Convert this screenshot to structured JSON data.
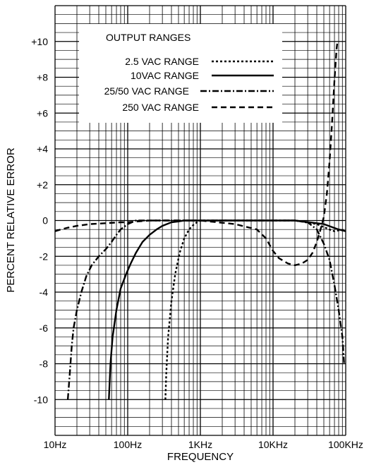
{
  "chart_data": {
    "type": "line",
    "xlabel": "FREQUENCY",
    "ylabel": "PERCENT RELATIVE ERROR",
    "x_scale": "log",
    "xlim": [
      10,
      100000
    ],
    "ylim": [
      -12,
      12
    ],
    "x_ticks": [
      {
        "value": 10,
        "label": "10Hz"
      },
      {
        "value": 100,
        "label": "100Hz"
      },
      {
        "value": 1000,
        "label": "1KHz"
      },
      {
        "value": 10000,
        "label": "10KHz"
      },
      {
        "value": 100000,
        "label": "100KHz"
      }
    ],
    "y_ticks": [
      {
        "value": 10,
        "label": "+10"
      },
      {
        "value": 8,
        "label": "+8"
      },
      {
        "value": 6,
        "label": "+6"
      },
      {
        "value": 4,
        "label": "+4"
      },
      {
        "value": 2,
        "label": "+2"
      },
      {
        "value": 0,
        "label": "0"
      },
      {
        "value": -2,
        "label": "-2"
      },
      {
        "value": -4,
        "label": "-4"
      },
      {
        "value": -6,
        "label": "-6"
      },
      {
        "value": -8,
        "label": "-8"
      },
      {
        "value": -10,
        "label": "-10"
      }
    ],
    "grid": true,
    "legend": {
      "title": "OUTPUT RANGES",
      "position": "top-left"
    },
    "series": [
      {
        "name": "2.5 VAC RANGE",
        "dash": "dotted",
        "x": [
          330,
          340,
          360,
          400,
          450,
          520,
          600,
          700,
          800,
          900,
          1000,
          2000,
          5000,
          10000,
          20000,
          40000,
          60000,
          70000,
          80000,
          100000
        ],
        "y": [
          -10,
          -8.5,
          -6.5,
          -4.5,
          -3,
          -1.8,
          -1,
          -0.5,
          -0.25,
          -0.1,
          0,
          0,
          0,
          0,
          0,
          -0.2,
          -0.5,
          -0.6,
          -0.55,
          -0.5
        ]
      },
      {
        "name": "10VAC RANGE",
        "dash": "solid",
        "x": [
          55,
          58,
          62,
          70,
          80,
          95,
          110,
          130,
          160,
          200,
          250,
          300,
          400,
          500,
          600,
          800,
          1000,
          5000,
          10000,
          20000,
          50000,
          80000,
          100000
        ],
        "y": [
          -10,
          -8,
          -6.5,
          -5,
          -3.8,
          -3,
          -2.4,
          -1.8,
          -1.2,
          -0.8,
          -0.5,
          -0.3,
          -0.1,
          -0.05,
          0,
          0,
          0,
          0,
          0,
          0,
          -0.2,
          -0.5,
          -0.6
        ]
      },
      {
        "name": "25/50 VAC RANGE",
        "dash": "dash-dot",
        "x": [
          15,
          16,
          17,
          18,
          20,
          23,
          27,
          32,
          40,
          50,
          60,
          70,
          80,
          100,
          130,
          200,
          500,
          1000,
          5000,
          10000,
          20000,
          30000,
          40000,
          50000,
          60000,
          70000,
          80000,
          90000,
          95000
        ],
        "y": [
          -10,
          -8.5,
          -7,
          -6,
          -5,
          -4,
          -3.1,
          -2.5,
          -2,
          -1.6,
          -1.2,
          -0.8,
          -0.5,
          -0.2,
          0,
          0,
          0,
          0,
          0,
          0,
          0,
          -0.1,
          -0.5,
          -1.3,
          -2.2,
          -3.6,
          -5,
          -6.5,
          -8
        ]
      },
      {
        "name": "250 VAC RANGE",
        "dash": "dashed",
        "x": [
          10,
          12,
          15,
          20,
          30,
          50,
          80,
          100,
          200,
          500,
          1000,
          3000,
          6000,
          8000,
          10000,
          12000,
          16000,
          20000,
          25000,
          30000,
          35000,
          40000,
          45000,
          50000,
          55000,
          60000,
          65000,
          70000,
          75000,
          77000
        ],
        "y": [
          -0.6,
          -0.5,
          -0.4,
          -0.3,
          -0.2,
          -0.15,
          -0.1,
          -0.1,
          0,
          0,
          0,
          -0.2,
          -0.5,
          -1,
          -1.7,
          -2.1,
          -2.4,
          -2.5,
          -2.4,
          -2.2,
          -1.8,
          -1.2,
          -0.5,
          0.2,
          1.5,
          3.3,
          5.5,
          7.8,
          9.6,
          10
        ]
      }
    ]
  }
}
